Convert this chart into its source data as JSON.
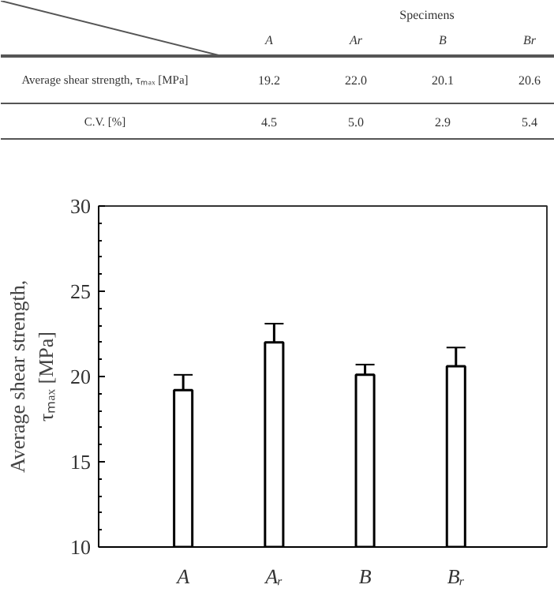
{
  "chart_data": {
    "type": "bar",
    "categories": [
      "A",
      "Aᵣ",
      "B",
      "Bᵣ"
    ],
    "values": [
      19.2,
      22.0,
      20.1,
      20.6
    ],
    "errors": [
      0.9,
      1.1,
      0.6,
      1.1
    ],
    "color": "#ffffff",
    "ylabel": "Average shear strength,\nτₘₐₓ [MPa]",
    "ylim": [
      10,
      30
    ],
    "yticks": [
      10,
      15,
      20,
      25,
      30
    ],
    "annotations": [
      "Specimens",
      "A",
      "Ar",
      "B",
      "Br",
      "Average shear strength, τₘₐₓ [MPa]",
      "19.2",
      "22.0",
      "20.1",
      "20.6",
      "C.V. [%]",
      "4.5",
      "5.0",
      "2.9",
      "5.4"
    ],
    "grid": false
  }
}
